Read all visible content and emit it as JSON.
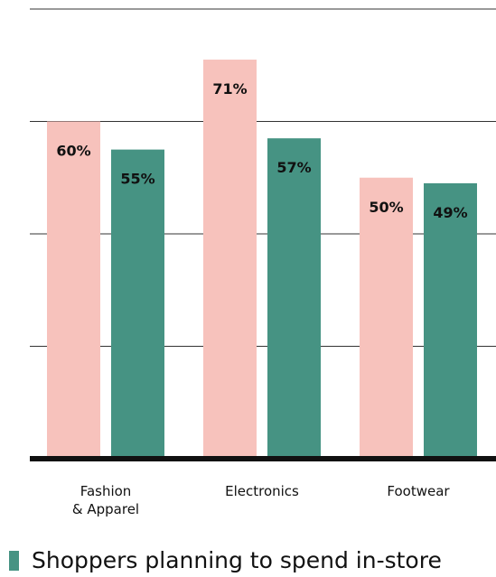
{
  "chart_data": {
    "type": "bar",
    "categories": [
      "Fashion\n& Apparel",
      "Electronics",
      "Footwear"
    ],
    "series": [
      {
        "values": [
          60,
          71,
          50
        ],
        "labels": [
          "60%",
          "71%",
          "50%"
        ]
      },
      {
        "name": "Shoppers planning to spend in-store",
        "values": [
          55,
          57,
          49
        ],
        "labels": [
          "55%",
          "57%",
          "49%"
        ]
      }
    ],
    "ylim": [
      0,
      80
    ],
    "grid": true,
    "legend_position": "bottom-left"
  },
  "colors": {
    "series_1": "#f7c2bc",
    "series_2": "#469383",
    "grid": "#333333",
    "baseline": "#111111",
    "text": "#111111"
  }
}
